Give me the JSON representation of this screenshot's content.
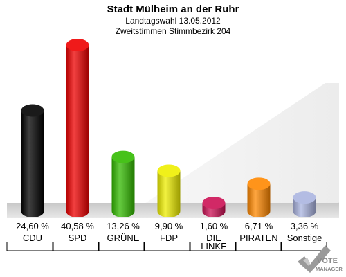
{
  "chart_data": {
    "type": "bar",
    "title": "Stadt Mülheim an der Ruhr",
    "subtitle_1": "Landtagswahl 13.05.2012",
    "subtitle_2": "Zweitstimmen Stimmbezirk 204",
    "categories": [
      "CDU",
      "SPD",
      "GRÜNE",
      "FDP",
      "DIE LINKE",
      "PIRATEN",
      "Sonstige"
    ],
    "category_lines": [
      [
        "CDU"
      ],
      [
        "SPD"
      ],
      [
        "GRÜNE"
      ],
      [
        "FDP"
      ],
      [
        "DIE",
        "LINKE"
      ],
      [
        "PIRATEN"
      ],
      [
        "Sonstige"
      ]
    ],
    "values": [
      24.6,
      40.58,
      13.26,
      9.9,
      1.6,
      6.71,
      3.36
    ],
    "value_labels": [
      "24,60 %",
      "40,58 %",
      "13,26 %",
      "9,90 %",
      "1,60 %",
      "6,71 %",
      "3,36 %"
    ],
    "colors": [
      "#000000",
      "#ee0000",
      "#33bb00",
      "#eeee00",
      "#cc1155",
      "#ff8800",
      "#aab4e0"
    ],
    "ylim": [
      0,
      40.58
    ]
  },
  "logo": {
    "line1": "VOTE",
    "line2": "MANAGER"
  }
}
